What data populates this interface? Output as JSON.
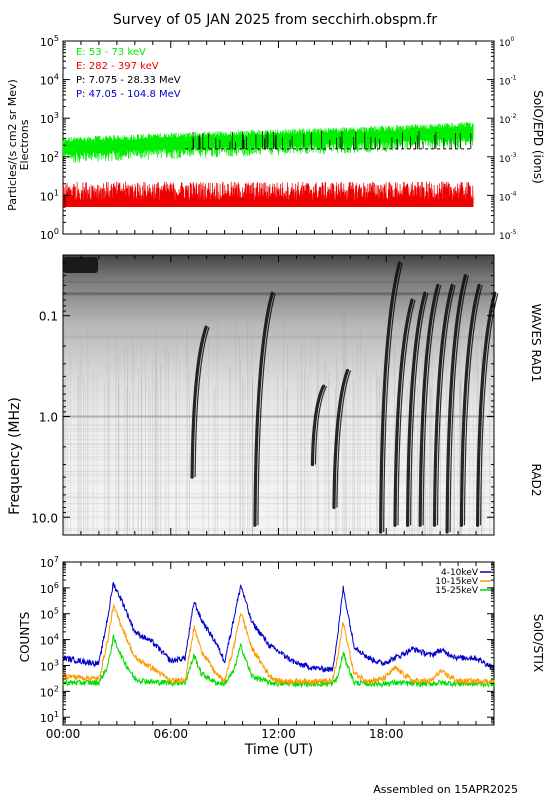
{
  "title": "Survey of 05 JAN 2025 from secchirh.obspm.fr",
  "footer": "Assembled on 15APR2025",
  "chart_data": [
    {
      "type": "line",
      "name": "SolO/EPD particles",
      "ylabel": "Particles/(s cm2 sr Mev)",
      "ylabel2": "Electrons",
      "right_label": "SolO/EPD (ions)",
      "y_scale": "log",
      "ylim": [
        1,
        100000
      ],
      "yticks": [
        "10^0",
        "10^1",
        "10^2",
        "10^3",
        "10^4",
        "10^5"
      ],
      "y2lim": [
        1e-05,
        1
      ],
      "y2ticks": [
        "10^-5",
        "10^-4",
        "10^-3",
        "10^-2",
        "10^-1",
        "10^0"
      ],
      "xlim": [
        0,
        24
      ],
      "legend_placement": "top-left",
      "series": [
        {
          "name": "E: 53 - 73 keV",
          "color": "#00ee00",
          "x": [
            0,
            2,
            4,
            6,
            8,
            10,
            12,
            14,
            16,
            18,
            20,
            22,
            24
          ],
          "values": [
            190,
            210,
            230,
            250,
            270,
            290,
            310,
            330,
            350,
            380,
            420,
            460,
            500
          ]
        },
        {
          "name": "E: 282 - 397 keV",
          "color": "#ee0000",
          "x": [
            0,
            2,
            4,
            6,
            8,
            10,
            12,
            14,
            16,
            18,
            20,
            22,
            24
          ],
          "values": [
            12,
            12,
            12,
            12,
            12,
            12,
            12,
            12,
            12,
            12,
            12,
            12,
            12
          ]
        },
        {
          "name": "P: 7.075 - 28.33 MeV",
          "color": "#000000",
          "x": [
            0,
            2,
            4,
            6,
            8,
            10,
            12,
            14,
            16,
            18,
            20,
            22,
            24
          ],
          "values": [
            0.0016,
            0.0016,
            0.0016,
            0.0016,
            0.0016,
            0.0016,
            0.0016,
            0.0016,
            0.0016,
            0.0016,
            0.0016,
            0.0016,
            0.0016
          ]
        },
        {
          "name": "P: 47.05 - 104.8 MeV",
          "color": "#0000cc",
          "x": [],
          "values": []
        }
      ]
    },
    {
      "type": "heatmap",
      "name": "WAVES spectrogram",
      "ylabel": "Frequency (MHz)",
      "right_label_top": "WAVES RAD1",
      "right_label_bottom": "RAD2",
      "y_scale": "log",
      "ylim": [
        0.025,
        15
      ],
      "yticks": [
        "0.1",
        "1.0",
        "10.0"
      ],
      "xlim": [
        0,
        24
      ],
      "bursts": [
        {
          "t": 7.3,
          "fmin": 0.13,
          "fmax": 4.0
        },
        {
          "t": 10.8,
          "fmin": 0.06,
          "fmax": 12.0
        },
        {
          "t": 14.0,
          "fmin": 0.5,
          "fmax": 3.0
        },
        {
          "t": 15.2,
          "fmin": 0.35,
          "fmax": 8.0
        },
        {
          "t": 17.8,
          "fmin": 0.03,
          "fmax": 14.0
        },
        {
          "t": 18.6,
          "fmin": 0.07,
          "fmax": 12.0
        },
        {
          "t": 19.3,
          "fmin": 0.06,
          "fmax": 12.0
        },
        {
          "t": 20.0,
          "fmin": 0.05,
          "fmax": 12.0
        },
        {
          "t": 20.8,
          "fmin": 0.05,
          "fmax": 12.0
        },
        {
          "t": 21.5,
          "fmin": 0.04,
          "fmax": 14.0
        },
        {
          "t": 22.3,
          "fmin": 0.05,
          "fmax": 12.0
        },
        {
          "t": 23.2,
          "fmin": 0.06,
          "fmax": 12.0
        }
      ]
    },
    {
      "type": "line",
      "name": "SolO/STIX counts",
      "ylabel": "COUNTS",
      "right_label": "SolO/STIX",
      "xlabel": "Time (UT)",
      "y_scale": "log",
      "ylim": [
        5,
        10000000
      ],
      "yticks": [
        "10^1",
        "10^2",
        "10^3",
        "10^4",
        "10^5",
        "10^6",
        "10^7"
      ],
      "xlim": [
        0,
        24
      ],
      "xticks": [
        "00:00",
        "06:00",
        "12:00",
        "18:00"
      ],
      "legend_placement": "top-right",
      "series": [
        {
          "name": "4-10keV",
          "color": "#0000cc",
          "x": [
            0,
            1.0,
            2.0,
            2.5,
            2.8,
            3.3,
            4.0,
            5.0,
            6.0,
            6.8,
            7.3,
            7.7,
            8.5,
            9.0,
            9.5,
            9.9,
            10.5,
            11.5,
            12.0,
            13.0,
            14.0,
            15.0,
            15.3,
            15.6,
            16.2,
            17.0,
            17.8,
            18.5,
            19.5,
            20.5,
            21.0,
            22.0,
            23.0,
            24.0
          ],
          "values": [
            2000,
            1500,
            1200,
            80000,
            1500000,
            300000,
            20000,
            8000,
            1500,
            2000,
            300000,
            60000,
            8000,
            1500,
            60000,
            1300000,
            50000,
            6000,
            3500,
            1200,
            800,
            700,
            15000,
            1000000,
            6000,
            2000,
            1200,
            2000,
            4500,
            2500,
            4000,
            2000,
            2000,
            800
          ]
        },
        {
          "name": "10-15keV",
          "color": "#ff9900",
          "x": [
            0,
            1.0,
            2.0,
            2.5,
            2.8,
            3.3,
            4.0,
            5.0,
            6.0,
            6.8,
            7.3,
            7.7,
            8.5,
            9.0,
            9.5,
            9.9,
            10.5,
            11.5,
            12.0,
            13.0,
            14.0,
            15.0,
            15.3,
            15.6,
            16.2,
            17.0,
            17.8,
            18.5,
            19.5,
            20.5,
            21.0,
            22.0,
            23.0,
            24.0
          ],
          "values": [
            400,
            350,
            300,
            10000,
            200000,
            30000,
            2000,
            800,
            250,
            300,
            30000,
            4000,
            500,
            250,
            5000,
            120000,
            5000,
            400,
            250,
            250,
            250,
            250,
            2000,
            50000,
            500,
            250,
            300,
            800,
            250,
            250,
            600,
            250,
            250,
            250
          ]
        },
        {
          "name": "15-25keV",
          "color": "#00dd00",
          "x": [
            0,
            1.0,
            2.0,
            2.5,
            2.8,
            3.3,
            4.0,
            5.0,
            6.0,
            6.8,
            7.3,
            7.7,
            8.5,
            9.0,
            9.5,
            9.9,
            10.5,
            11.5,
            12.0,
            13.0,
            14.0,
            15.0,
            15.3,
            15.6,
            16.2,
            17.0,
            17.8,
            18.5,
            19.5,
            20.5,
            21.0,
            22.0,
            23.0,
            24.0
          ],
          "values": [
            220,
            220,
            220,
            1000,
            12000,
            2000,
            300,
            230,
            220,
            220,
            2500,
            500,
            220,
            200,
            600,
            6000,
            400,
            220,
            200,
            200,
            200,
            200,
            350,
            3000,
            220,
            200,
            200,
            220,
            200,
            200,
            220,
            200,
            200,
            200
          ]
        }
      ]
    }
  ]
}
